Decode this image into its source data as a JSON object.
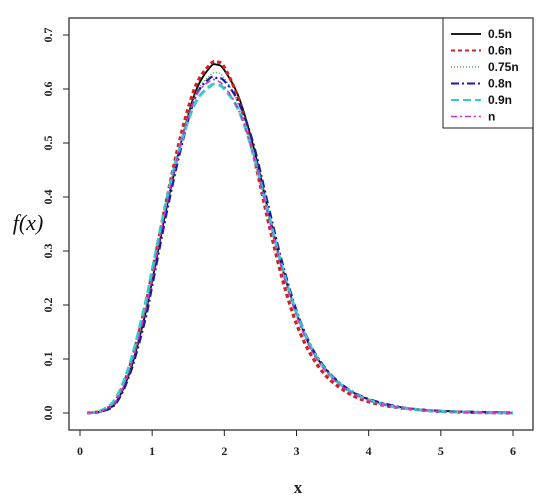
{
  "chart_data": {
    "type": "line",
    "title": "",
    "xlabel": "x",
    "ylabel": "f(x)",
    "xlim": [
      0,
      6
    ],
    "ylim": [
      0,
      0.7
    ],
    "x_ticks": [
      "0",
      "1",
      "2",
      "3",
      "4",
      "5",
      "6"
    ],
    "y_ticks": [
      "0.0",
      "0.1",
      "0.2",
      "0.3",
      "0.4",
      "0.5",
      "0.6",
      "0.7"
    ],
    "legend_position": "top-right",
    "grid": false,
    "series": [
      {
        "name": "0.5n",
        "color": "#000000",
        "dash": "solid",
        "width": 1.8,
        "x": [
          0.1,
          0.3,
          0.5,
          0.7,
          0.9,
          1.0,
          1.2,
          1.4,
          1.6,
          1.8,
          1.9,
          2.0,
          2.2,
          2.4,
          2.6,
          2.8,
          3.0,
          3.2,
          3.4,
          3.6,
          3.8,
          4.0,
          4.3,
          4.6,
          5.0,
          5.5,
          6.0
        ],
        "y": [
          0.0,
          0.003,
          0.02,
          0.08,
          0.18,
          0.245,
          0.38,
          0.5,
          0.595,
          0.64,
          0.645,
          0.635,
          0.585,
          0.495,
          0.38,
          0.27,
          0.185,
          0.12,
          0.082,
          0.055,
          0.037,
          0.025,
          0.014,
          0.008,
          0.004,
          0.002,
          0.001
        ]
      },
      {
        "name": "0.6n",
        "color": "#cc2222",
        "dash": "4,3",
        "width": 3.2,
        "x": [
          0.1,
          0.3,
          0.5,
          0.7,
          0.9,
          1.0,
          1.2,
          1.4,
          1.6,
          1.8,
          1.9,
          2.0,
          2.2,
          2.4,
          2.6,
          2.8,
          3.0,
          3.2,
          3.4,
          3.6,
          3.8,
          4.0,
          4.3,
          4.6,
          5.0,
          5.5,
          6.0
        ],
        "y": [
          0.0,
          0.004,
          0.024,
          0.09,
          0.195,
          0.26,
          0.395,
          0.515,
          0.605,
          0.645,
          0.65,
          0.64,
          0.58,
          0.48,
          0.36,
          0.25,
          0.165,
          0.108,
          0.07,
          0.047,
          0.031,
          0.021,
          0.012,
          0.007,
          0.003,
          0.001,
          0.0
        ]
      },
      {
        "name": "0.75n",
        "color": "#44aa44",
        "dash": "1,2",
        "width": 1.6,
        "x": [
          0.1,
          0.3,
          0.5,
          0.7,
          0.9,
          1.0,
          1.2,
          1.4,
          1.6,
          1.8,
          1.9,
          2.0,
          2.2,
          2.4,
          2.6,
          2.8,
          3.0,
          3.2,
          3.4,
          3.6,
          3.8,
          4.0,
          4.3,
          4.6,
          5.0,
          5.5,
          6.0
        ],
        "y": [
          0.0,
          0.004,
          0.022,
          0.085,
          0.19,
          0.255,
          0.39,
          0.505,
          0.59,
          0.625,
          0.63,
          0.62,
          0.57,
          0.485,
          0.375,
          0.27,
          0.185,
          0.122,
          0.08,
          0.054,
          0.036,
          0.024,
          0.013,
          0.007,
          0.003,
          0.001,
          0.0
        ]
      },
      {
        "name": "0.8n",
        "color": "#1a1aa8",
        "dash": "8,3,2,3",
        "width": 2.2,
        "x": [
          0.1,
          0.3,
          0.5,
          0.7,
          0.9,
          1.0,
          1.2,
          1.4,
          1.6,
          1.8,
          1.9,
          2.0,
          2.2,
          2.4,
          2.6,
          2.8,
          3.0,
          3.2,
          3.4,
          3.6,
          3.8,
          4.0,
          4.3,
          4.6,
          5.0,
          5.5,
          6.0
        ],
        "y": [
          0.0,
          0.003,
          0.018,
          0.075,
          0.17,
          0.235,
          0.37,
          0.49,
          0.585,
          0.62,
          0.62,
          0.615,
          0.575,
          0.5,
          0.39,
          0.28,
          0.19,
          0.125,
          0.083,
          0.056,
          0.038,
          0.026,
          0.015,
          0.008,
          0.004,
          0.002,
          0.001
        ]
      },
      {
        "name": "0.9n",
        "color": "#33cccc",
        "dash": "8,4",
        "width": 3.0,
        "x": [
          0.1,
          0.3,
          0.5,
          0.7,
          0.9,
          1.0,
          1.2,
          1.4,
          1.6,
          1.8,
          1.9,
          2.0,
          2.2,
          2.4,
          2.6,
          2.8,
          3.0,
          3.2,
          3.4,
          3.6,
          3.8,
          4.0,
          4.3,
          4.6,
          5.0,
          5.5,
          6.0
        ],
        "y": [
          0.0,
          0.005,
          0.028,
          0.095,
          0.2,
          0.265,
          0.395,
          0.5,
          0.575,
          0.605,
          0.608,
          0.6,
          0.56,
          0.48,
          0.375,
          0.27,
          0.185,
          0.122,
          0.08,
          0.054,
          0.036,
          0.024,
          0.013,
          0.007,
          0.003,
          0.001,
          0.0
        ]
      },
      {
        "name": "n",
        "color": "#cc33cc",
        "dash": "6,3,2,3",
        "width": 1.6,
        "x": [
          0.1,
          0.3,
          0.5,
          0.7,
          0.9,
          1.0,
          1.2,
          1.4,
          1.6,
          1.8,
          1.9,
          2.0,
          2.2,
          2.4,
          2.6,
          2.8,
          3.0,
          3.2,
          3.4,
          3.6,
          3.8,
          4.0,
          4.3,
          4.6,
          5.0,
          5.5,
          6.0
        ],
        "y": [
          0.0,
          0.004,
          0.022,
          0.085,
          0.185,
          0.25,
          0.385,
          0.5,
          0.585,
          0.615,
          0.615,
          0.605,
          0.56,
          0.48,
          0.37,
          0.265,
          0.18,
          0.118,
          0.078,
          0.052,
          0.035,
          0.023,
          0.013,
          0.007,
          0.003,
          0.001,
          0.0
        ]
      }
    ]
  }
}
